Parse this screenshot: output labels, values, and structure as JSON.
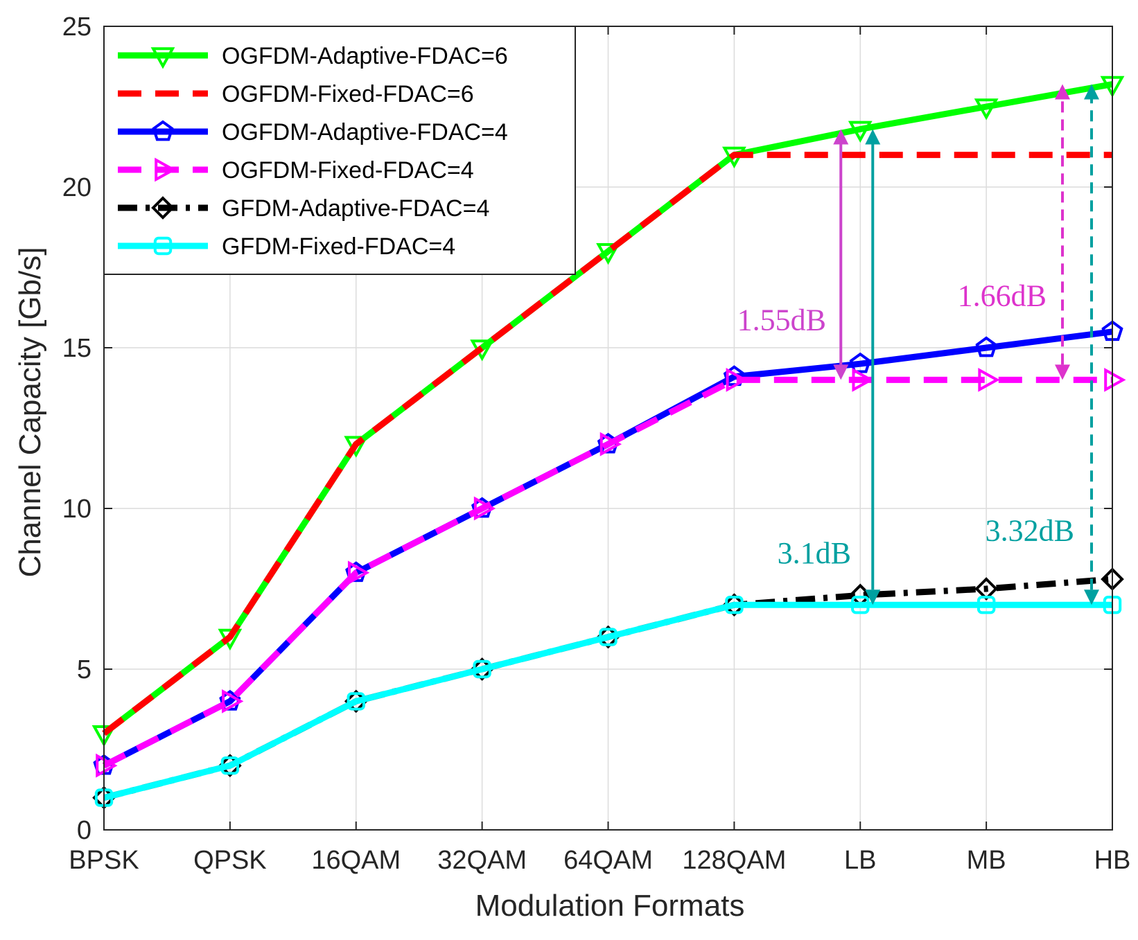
{
  "chart_data": {
    "type": "line",
    "xlabel": "Modulation Formats",
    "ylabel": "Channel Capacity [Gb/s]",
    "categories": [
      "BPSK",
      "QPSK",
      "16QAM",
      "32QAM",
      "64QAM",
      "128QAM",
      "LB",
      "MB",
      "HB"
    ],
    "ylim": [
      0,
      25
    ],
    "yticks": [
      0,
      5,
      10,
      15,
      20,
      25
    ],
    "grid": true,
    "legend_position": "top-left",
    "series": [
      {
        "name": "OGFDM-Adaptive-FDAC=6",
        "color": "#00ff00",
        "dash": "solid",
        "marker": "triangle-down",
        "values": [
          3,
          6,
          12,
          15,
          18,
          21,
          21.8,
          22.5,
          23.2
        ]
      },
      {
        "name": "OGFDM-Fixed-FDAC=6",
        "color": "#ff0000",
        "dash": "dashed",
        "marker": "none",
        "values": [
          3,
          6,
          12,
          15,
          18,
          21,
          21,
          21,
          21
        ]
      },
      {
        "name": "OGFDM-Adaptive-FDAC=4",
        "color": "#0000ff",
        "dash": "solid",
        "marker": "pentagram",
        "values": [
          2,
          4,
          8,
          10,
          12,
          14.1,
          14.5,
          15,
          15.5
        ]
      },
      {
        "name": "OGFDM-Fixed-FDAC=4",
        "color": "#ff00ff",
        "dash": "dashed",
        "marker": "triangle-right",
        "values": [
          2,
          4,
          8,
          10,
          12,
          14,
          14,
          14,
          14
        ]
      },
      {
        "name": "GFDM-Adaptive-FDAC=4",
        "color": "#000000",
        "dash": "dashdot",
        "marker": "diamond",
        "values": [
          1,
          2,
          4,
          5,
          6,
          7,
          7.3,
          7.5,
          7.8
        ]
      },
      {
        "name": "GFDM-Fixed-FDAC=4",
        "color": "#00ffff",
        "dash": "solid",
        "marker": "square",
        "values": [
          1,
          2,
          4,
          5,
          6,
          7,
          7,
          7,
          7
        ]
      }
    ],
    "annotations": [
      {
        "text": "1.55dB",
        "color": "#cc44cc",
        "x_category": "LB",
        "from": 14,
        "to": 21.8,
        "style": "solid"
      },
      {
        "text": "3.1dB",
        "color": "#00a0a0",
        "x_category": "LB",
        "from": 7,
        "to": 21.8,
        "style": "solid"
      },
      {
        "text": "1.66dB",
        "color": "#dd33cc",
        "x_category": "HB",
        "from": 14,
        "to": 23.2,
        "style": "dashed"
      },
      {
        "text": "3.32dB",
        "color": "#00a0a0",
        "x_category": "HB",
        "from": 7,
        "to": 23.2,
        "style": "dashed"
      }
    ]
  }
}
